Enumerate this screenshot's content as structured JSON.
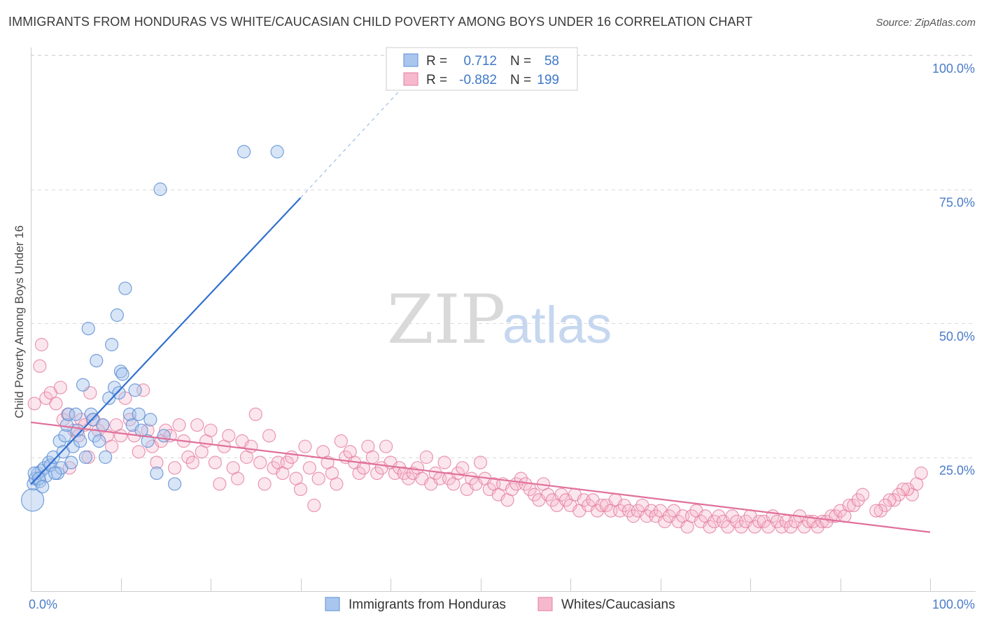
{
  "title": "IMMIGRANTS FROM HONDURAS VS WHITE/CAUCASIAN CHILD POVERTY AMONG BOYS UNDER 16 CORRELATION CHART",
  "source": "Source: ZipAtlas.com",
  "watermark": {
    "zip": "ZIP",
    "atlas": "atlas"
  },
  "stats_box": {
    "rows": [
      {
        "r_label": "R =",
        "r_value": "0.712",
        "n_label": "N =",
        "n_value": "58"
      },
      {
        "r_label": "R =",
        "r_value": "-0.882",
        "n_label": "N =",
        "n_value": "199"
      }
    ]
  },
  "colors": {
    "blue_fill": "#a9c6ee",
    "blue_stroke": "#5f8fd4",
    "blue_line": "#2f6fce",
    "pink_fill": "#f6b8cc",
    "pink_stroke": "#e47ea0",
    "pink_line": "#e0709a",
    "grid": "#d9d9d9",
    "axis_text": "#4a7cc9"
  },
  "chart_data": {
    "type": "scatter",
    "title": "IMMIGRANTS FROM HONDURAS VS WHITE/CAUCASIAN CHILD POVERTY AMONG BOYS UNDER 16 CORRELATION CHART",
    "xlabel": "",
    "ylabel": "Child Poverty Among Boys Under 16",
    "xlim": [
      0,
      100
    ],
    "ylim": [
      0,
      100
    ],
    "x_tick_labels": [
      "0.0%",
      "100.0%"
    ],
    "y_ticks": [
      25,
      50,
      75,
      100
    ],
    "y_tick_labels": [
      "25.0%",
      "50.0%",
      "75.0%",
      "100.0%"
    ],
    "legend": [
      "Immigrants from Honduras",
      "Whites/Caucasians"
    ],
    "series": [
      {
        "name": "Immigrants from Honduras",
        "r": 0.712,
        "n": 58,
        "trend": {
          "x0": 0,
          "y0": 19.9,
          "x1": 30,
          "y1": 73.4,
          "dash_x1": 43,
          "dash_y1": 97
        },
        "points": [
          [
            0.3,
            20
          ],
          [
            0.5,
            21
          ],
          [
            0.8,
            22
          ],
          [
            1,
            20.5
          ],
          [
            1.2,
            22.5
          ],
          [
            1.5,
            23
          ],
          [
            1.7,
            21.5
          ],
          [
            2,
            24
          ],
          [
            2.2,
            23.5
          ],
          [
            2.5,
            25
          ],
          [
            0.4,
            22
          ],
          [
            0.9,
            21
          ],
          [
            3,
            22
          ],
          [
            3.2,
            28
          ],
          [
            3.4,
            23
          ],
          [
            3.6,
            26
          ],
          [
            3.8,
            29
          ],
          [
            4,
            31
          ],
          [
            4.2,
            33
          ],
          [
            4.5,
            24
          ],
          [
            4.7,
            27
          ],
          [
            5,
            33
          ],
          [
            5.2,
            30
          ],
          [
            5.5,
            28
          ],
          [
            5.8,
            38.5
          ],
          [
            6.1,
            25
          ],
          [
            6.4,
            49
          ],
          [
            6.7,
            33
          ],
          [
            6.9,
            32
          ],
          [
            7.1,
            29
          ],
          [
            7.3,
            43
          ],
          [
            7.6,
            28
          ],
          [
            8,
            31
          ],
          [
            8.3,
            25
          ],
          [
            8.7,
            36
          ],
          [
            9,
            46
          ],
          [
            9.3,
            38
          ],
          [
            9.6,
            51.5
          ],
          [
            9.8,
            37
          ],
          [
            10,
            41
          ],
          [
            10.2,
            40.5
          ],
          [
            10.5,
            56.5
          ],
          [
            11,
            33
          ],
          [
            11.3,
            31
          ],
          [
            11.6,
            37.5
          ],
          [
            12,
            33
          ],
          [
            12.3,
            30
          ],
          [
            13,
            28
          ],
          [
            13.3,
            32
          ],
          [
            14,
            22
          ],
          [
            14.4,
            75
          ],
          [
            14.8,
            29
          ],
          [
            16,
            20
          ],
          [
            23.7,
            82
          ],
          [
            27.4,
            82
          ],
          [
            0.2,
            17
          ],
          [
            1.3,
            19.5
          ],
          [
            2.7,
            22
          ]
        ]
      },
      {
        "name": "Whites/Caucasians",
        "r": -0.882,
        "n": 199,
        "trend": {
          "x0": 0,
          "y0": 31.5,
          "x1": 100,
          "y1": 11
        }
      }
    ]
  },
  "pink_points": [
    [
      0.4,
      35
    ],
    [
      1,
      42
    ],
    [
      1.2,
      46
    ],
    [
      1.7,
      36
    ],
    [
      2.2,
      37
    ],
    [
      2.8,
      35
    ],
    [
      3.3,
      38
    ],
    [
      3.6,
      32
    ],
    [
      4.1,
      33
    ],
    [
      4.3,
      23
    ],
    [
      4.8,
      30
    ],
    [
      5.3,
      29
    ],
    [
      5.6,
      32
    ],
    [
      6,
      31
    ],
    [
      6.4,
      25
    ],
    [
      6.6,
      37
    ],
    [
      7,
      32
    ],
    [
      7.5,
      30
    ],
    [
      8,
      31
    ],
    [
      8.5,
      29
    ],
    [
      9,
      27
    ],
    [
      9.5,
      31
    ],
    [
      10,
      29
    ],
    [
      10.5,
      36
    ],
    [
      11,
      32
    ],
    [
      11.5,
      29
    ],
    [
      12,
      26
    ],
    [
      12.5,
      37.5
    ],
    [
      13,
      30
    ],
    [
      13.5,
      27
    ],
    [
      14,
      24
    ],
    [
      14.5,
      28
    ],
    [
      15,
      30
    ],
    [
      15.5,
      29
    ],
    [
      16,
      23
    ],
    [
      16.5,
      31
    ],
    [
      17,
      28
    ],
    [
      17.5,
      25
    ],
    [
      18,
      24
    ],
    [
      18.5,
      31
    ],
    [
      19,
      26
    ],
    [
      19.5,
      28
    ],
    [
      20,
      30
    ],
    [
      20.5,
      24
    ],
    [
      21,
      20
    ],
    [
      21.5,
      27
    ],
    [
      22,
      29
    ],
    [
      22.5,
      23
    ],
    [
      23,
      21
    ],
    [
      23.5,
      28
    ],
    [
      24,
      25
    ],
    [
      24.5,
      27
    ],
    [
      25,
      33
    ],
    [
      25.5,
      24
    ],
    [
      26,
      20
    ],
    [
      26.5,
      29
    ],
    [
      27,
      23
    ],
    [
      27.5,
      24
    ],
    [
      28,
      22
    ],
    [
      28.5,
      24
    ],
    [
      29,
      25
    ],
    [
      29.5,
      21
    ],
    [
      30,
      19
    ],
    [
      30.5,
      27
    ],
    [
      31,
      23
    ],
    [
      31.5,
      16
    ],
    [
      32,
      21
    ],
    [
      32.5,
      26
    ],
    [
      33,
      24
    ],
    [
      33.5,
      22
    ],
    [
      34,
      20
    ],
    [
      34.5,
      28
    ],
    [
      35,
      25
    ],
    [
      35.5,
      26
    ],
    [
      36,
      24
    ],
    [
      36.5,
      22
    ],
    [
      37,
      23
    ],
    [
      37.5,
      27
    ],
    [
      38,
      25
    ],
    [
      38.5,
      22
    ],
    [
      39,
      23
    ],
    [
      39.5,
      27
    ],
    [
      40,
      24
    ],
    [
      40.5,
      22
    ],
    [
      41,
      23
    ],
    [
      41.5,
      22
    ],
    [
      42,
      21
    ],
    [
      42.5,
      22
    ],
    [
      43,
      23
    ],
    [
      43.5,
      21
    ],
    [
      44,
      25
    ],
    [
      44.5,
      20
    ],
    [
      45,
      22
    ],
    [
      45.5,
      21
    ],
    [
      46,
      24
    ],
    [
      46.5,
      21
    ],
    [
      47,
      20
    ],
    [
      47.5,
      22
    ],
    [
      48,
      23
    ],
    [
      48.5,
      19
    ],
    [
      49,
      21
    ],
    [
      49.5,
      20
    ],
    [
      50,
      24
    ],
    [
      50.5,
      21
    ],
    [
      51,
      19
    ],
    [
      51.5,
      20
    ],
    [
      52,
      18
    ],
    [
      52.5,
      20
    ],
    [
      53,
      17
    ],
    [
      53.5,
      19
    ],
    [
      54,
      20
    ],
    [
      54.5,
      21
    ],
    [
      55,
      20
    ],
    [
      55.5,
      19
    ],
    [
      56,
      18
    ],
    [
      56.5,
      17
    ],
    [
      57,
      20
    ],
    [
      57.5,
      18
    ],
    [
      58,
      17
    ],
    [
      58.5,
      16
    ],
    [
      59,
      18
    ],
    [
      59.5,
      17
    ],
    [
      60,
      16
    ],
    [
      60.5,
      18
    ],
    [
      61,
      15
    ],
    [
      61.5,
      17
    ],
    [
      62,
      16
    ],
    [
      62.5,
      17
    ],
    [
      63,
      15
    ],
    [
      63.5,
      16
    ],
    [
      64,
      16
    ],
    [
      64.5,
      15
    ],
    [
      65,
      17
    ],
    [
      65.5,
      15
    ],
    [
      66,
      16
    ],
    [
      66.5,
      15
    ],
    [
      67,
      14
    ],
    [
      67.5,
      15
    ],
    [
      68,
      16
    ],
    [
      68.5,
      14
    ],
    [
      69,
      15
    ],
    [
      69.5,
      14
    ],
    [
      70,
      15
    ],
    [
      70.5,
      13
    ],
    [
      71,
      14
    ],
    [
      71.5,
      15
    ],
    [
      72,
      13
    ],
    [
      72.5,
      14
    ],
    [
      73,
      12
    ],
    [
      73.5,
      14
    ],
    [
      74,
      15
    ],
    [
      74.5,
      13
    ],
    [
      75,
      14
    ],
    [
      75.5,
      12
    ],
    [
      76,
      13
    ],
    [
      76.5,
      14
    ],
    [
      77,
      13
    ],
    [
      77.5,
      12
    ],
    [
      78,
      14
    ],
    [
      78.5,
      13
    ],
    [
      79,
      12
    ],
    [
      79.5,
      13
    ],
    [
      80,
      14
    ],
    [
      80.5,
      12
    ],
    [
      81,
      13
    ],
    [
      81.5,
      13
    ],
    [
      82,
      12
    ],
    [
      82.5,
      14
    ],
    [
      83,
      13
    ],
    [
      83.5,
      12
    ],
    [
      84,
      13
    ],
    [
      84.5,
      12
    ],
    [
      85,
      13
    ],
    [
      85.5,
      14
    ],
    [
      86,
      12
    ],
    [
      86.5,
      13
    ],
    [
      87,
      13
    ],
    [
      87.5,
      12
    ],
    [
      88,
      13
    ],
    [
      88.5,
      13
    ],
    [
      89,
      14
    ],
    [
      89.5,
      14
    ],
    [
      90,
      15
    ],
    [
      90.5,
      14
    ],
    [
      91,
      16
    ],
    [
      91.5,
      16
    ],
    [
      92,
      17
    ],
    [
      92.5,
      18
    ],
    [
      99,
      22
    ],
    [
      98.5,
      20
    ],
    [
      98,
      18
    ],
    [
      97.5,
      19
    ],
    [
      97,
      19
    ],
    [
      96.5,
      18
    ],
    [
      96,
      17
    ],
    [
      95.5,
      17
    ],
    [
      95,
      16
    ],
    [
      94.5,
      15
    ],
    [
      94,
      15
    ]
  ]
}
